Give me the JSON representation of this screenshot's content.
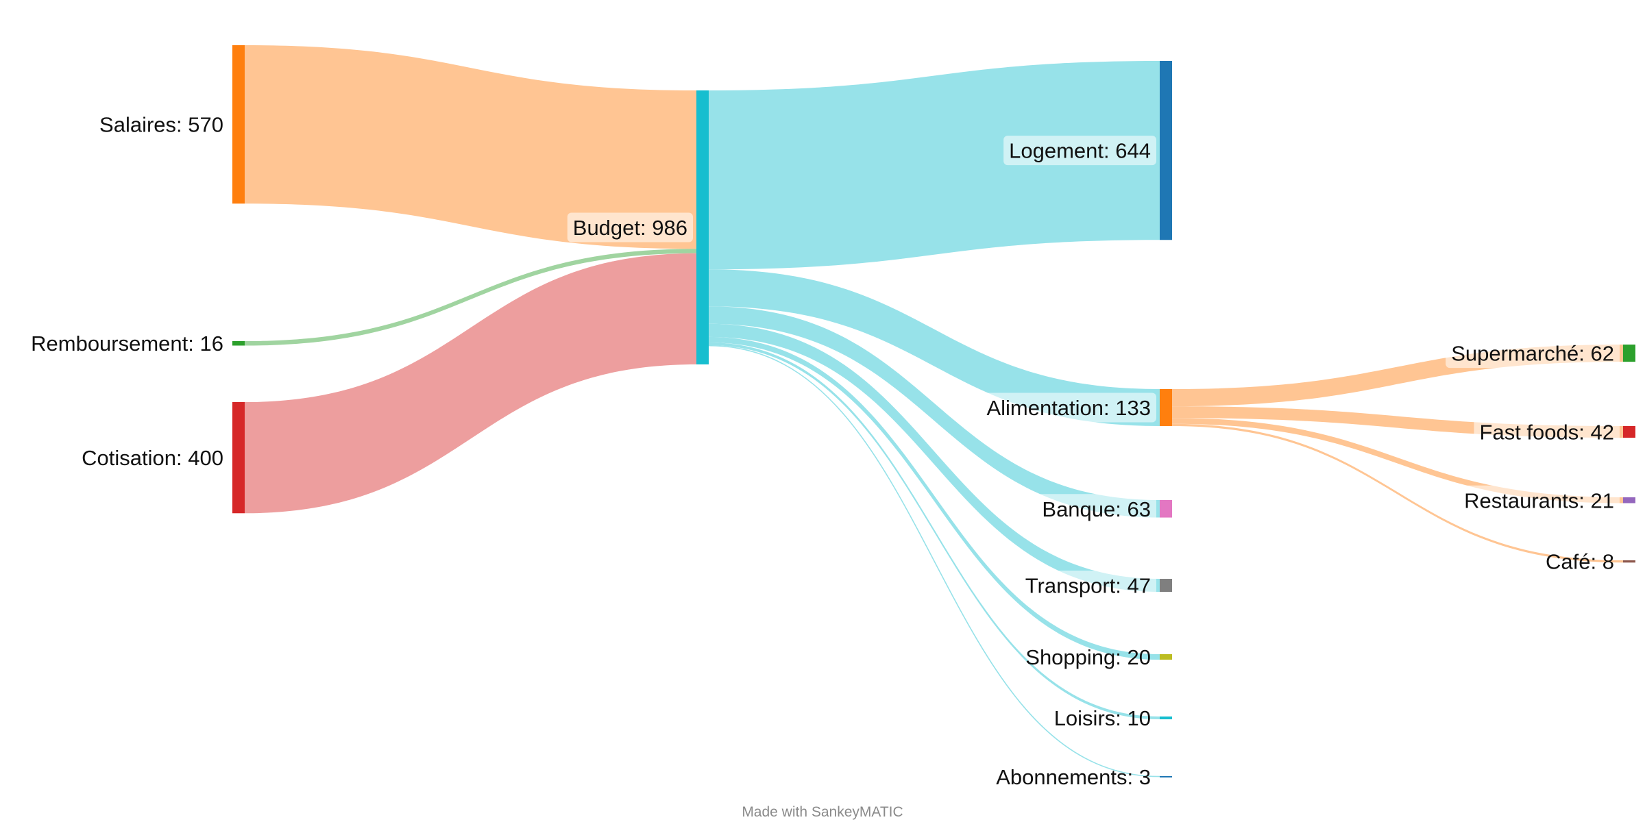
{
  "chart_data": {
    "type": "sankey",
    "nodes": [
      {
        "id": "salaires",
        "name": "Salaires",
        "value": 570,
        "color": "#ff7f0e"
      },
      {
        "id": "remboursement",
        "name": "Remboursement",
        "value": 16,
        "color": "#2ca02c"
      },
      {
        "id": "cotisation",
        "name": "Cotisation",
        "value": 400,
        "color": "#d62728"
      },
      {
        "id": "budget",
        "name": "Budget",
        "value": 986,
        "color": "#17becf"
      },
      {
        "id": "logement",
        "name": "Logement",
        "value": 644,
        "color": "#1f77b4"
      },
      {
        "id": "alimentation",
        "name": "Alimentation",
        "value": 133,
        "color": "#ff7f0e"
      },
      {
        "id": "banque",
        "name": "Banque",
        "value": 63,
        "color": "#e377c2"
      },
      {
        "id": "transport",
        "name": "Transport",
        "value": 47,
        "color": "#7f7f7f"
      },
      {
        "id": "shopping",
        "name": "Shopping",
        "value": 20,
        "color": "#bcbd22"
      },
      {
        "id": "loisirs",
        "name": "Loisirs",
        "value": 10,
        "color": "#17becf"
      },
      {
        "id": "abonnements",
        "name": "Abonnements",
        "value": 3,
        "color": "#1f77b4"
      },
      {
        "id": "supermarche",
        "name": "Supermarché",
        "value": 62,
        "color": "#2ca02c"
      },
      {
        "id": "fastfoods",
        "name": "Fast foods",
        "value": 42,
        "color": "#d62728"
      },
      {
        "id": "restaurants",
        "name": "Restaurants",
        "value": 21,
        "color": "#9467bd"
      },
      {
        "id": "cafe",
        "name": "Café",
        "value": 8,
        "color": "#8c564b"
      }
    ],
    "links": [
      {
        "source": "salaires",
        "target": "budget",
        "value": 570
      },
      {
        "source": "remboursement",
        "target": "budget",
        "value": 16
      },
      {
        "source": "cotisation",
        "target": "budget",
        "value": 400
      },
      {
        "source": "budget",
        "target": "logement",
        "value": 644
      },
      {
        "source": "budget",
        "target": "alimentation",
        "value": 133
      },
      {
        "source": "budget",
        "target": "banque",
        "value": 63
      },
      {
        "source": "budget",
        "target": "transport",
        "value": 47
      },
      {
        "source": "budget",
        "target": "shopping",
        "value": 20
      },
      {
        "source": "budget",
        "target": "loisirs",
        "value": 10
      },
      {
        "source": "budget",
        "target": "abonnements",
        "value": 3
      },
      {
        "source": "alimentation",
        "target": "supermarche",
        "value": 62
      },
      {
        "source": "alimentation",
        "target": "fastfoods",
        "value": 42
      },
      {
        "source": "alimentation",
        "target": "restaurants",
        "value": 21
      },
      {
        "source": "alimentation",
        "target": "cafe",
        "value": 8
      }
    ]
  },
  "footer": {
    "credit": "Made with SankeyMATIC"
  }
}
